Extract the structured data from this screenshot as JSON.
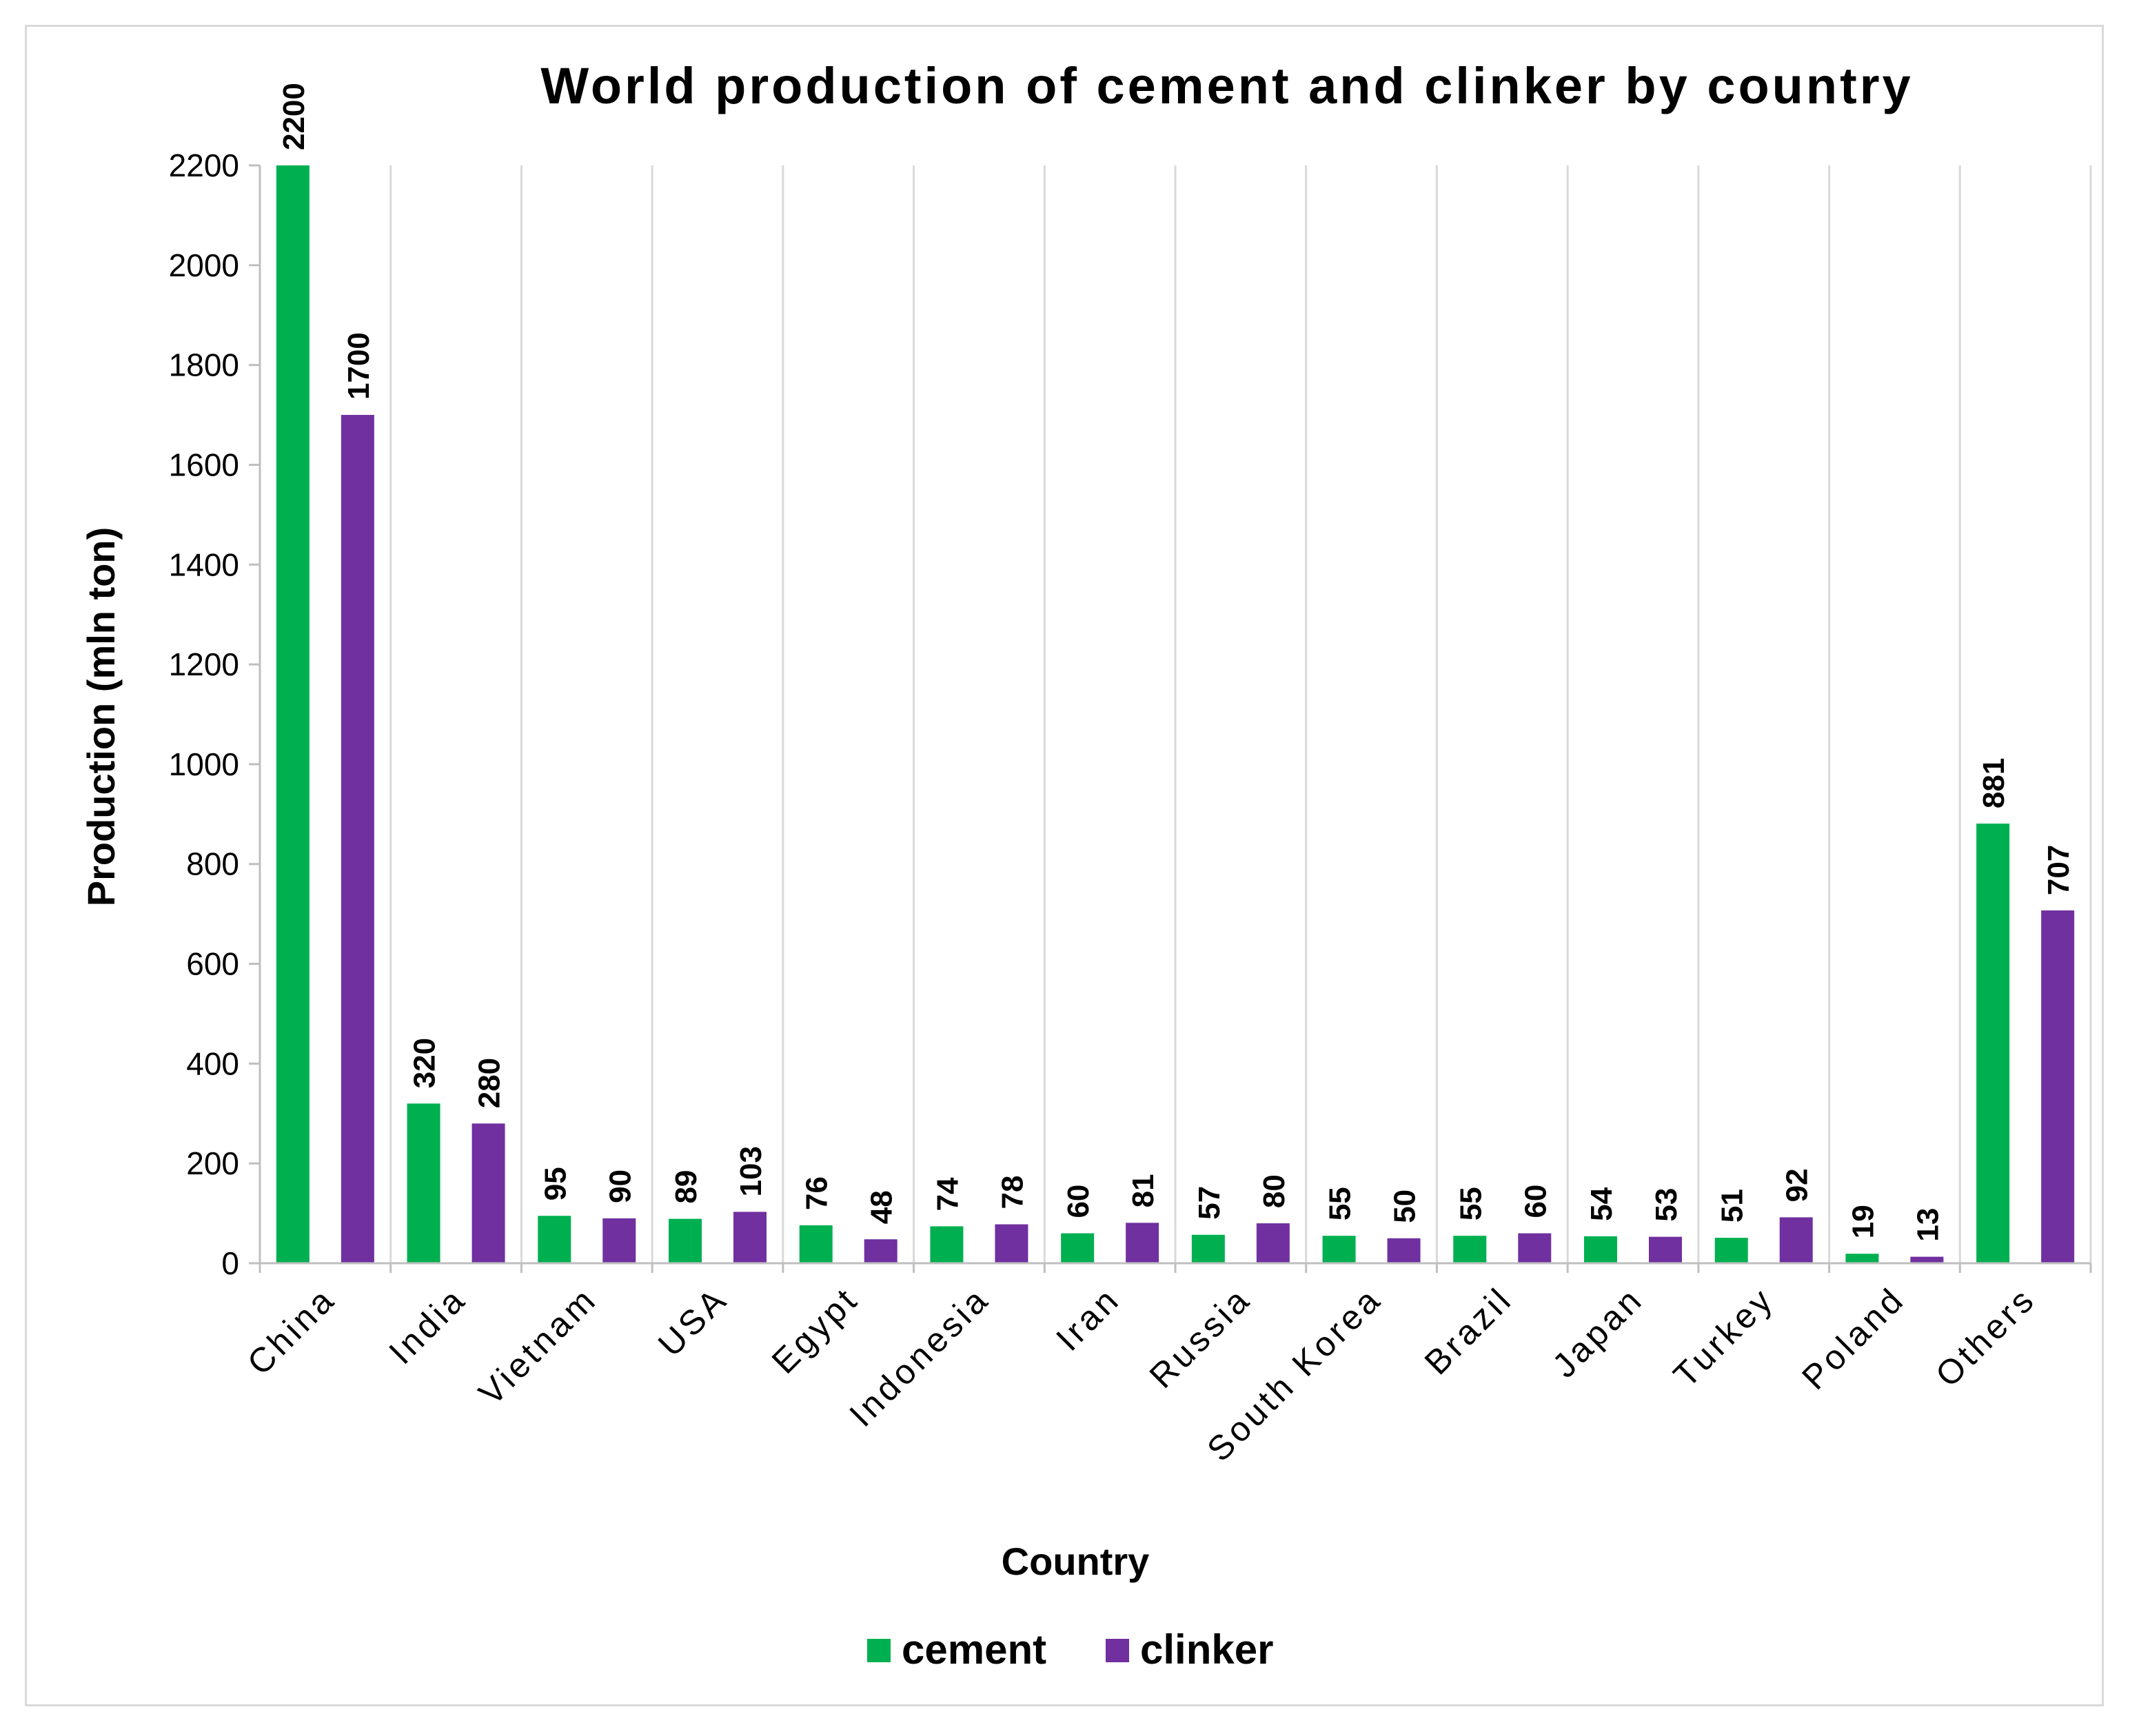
{
  "chart_data": {
    "type": "bar",
    "title": "World production of cement and clinker by country",
    "xlabel": "Country",
    "ylabel": "Production (mln ton)",
    "ylim": [
      0,
      2200
    ],
    "yticks": [
      0,
      200,
      400,
      600,
      800,
      1000,
      1200,
      1400,
      1600,
      1800,
      2000,
      2200
    ],
    "categories": [
      "China",
      "India",
      "Vietnam",
      "USA",
      "Egypt",
      "Indonesia",
      "Iran",
      "Russia",
      "South Korea",
      "Brazil",
      "Japan",
      "Turkey",
      "Poland",
      "Others"
    ],
    "series": [
      {
        "name": "cement",
        "color": "#00b050",
        "values": [
          2200,
          320,
          95,
          89,
          76,
          74,
          60,
          57,
          55,
          55,
          54,
          51,
          19,
          881
        ]
      },
      {
        "name": "clinker",
        "color": "#7030a0",
        "values": [
          1700,
          280,
          90,
          103,
          48,
          78,
          81,
          80,
          50,
          60,
          53,
          92,
          13,
          707
        ]
      }
    ],
    "grid": "vertical",
    "legend": "bottom",
    "data_labels": true
  }
}
